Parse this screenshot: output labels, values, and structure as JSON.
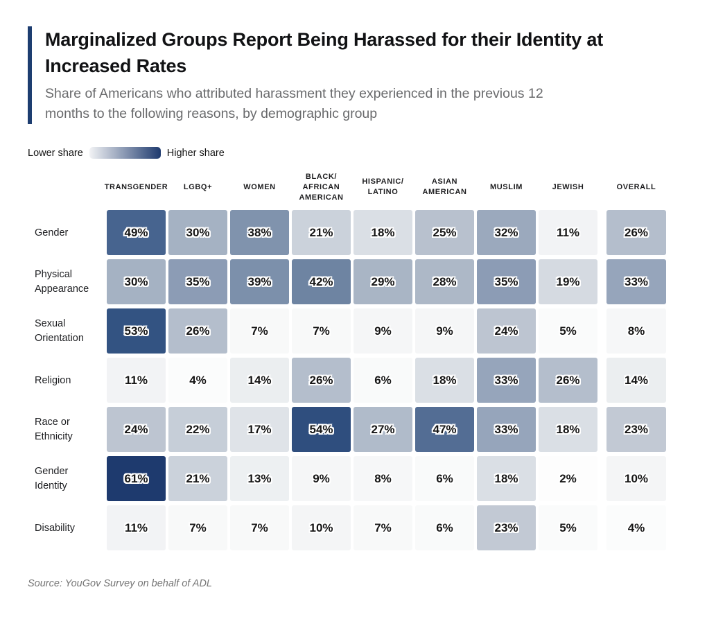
{
  "header": {
    "title": "Marginalized Groups Report Being Harassed for their Identity at\nIncreased Rates",
    "subtitle": "Share of Americans who attributed harassment they experienced in the previous 12\nmonths to the following reasons, by demographic group"
  },
  "legend": {
    "low_label": "Lower share",
    "high_label": "Higher share",
    "low_color": "#f2f3f5",
    "high_color": "#1e3a6e"
  },
  "source": "Source: YouGov Survey on behalf of ADL",
  "colors": {
    "accent_bar": "#1d3d70",
    "cell_text": "#161616",
    "scale_low": "#ffffff",
    "scale_high": "#1e3a6e"
  },
  "chart_data": {
    "type": "heatmap",
    "unit": "%",
    "title": "Marginalized Groups Report Being Harassed for their Identity at Increased Rates",
    "subtitle": "Share of Americans who attributed harassment they experienced in the previous 12 months to the following reasons, by demographic group",
    "legend_position": "top-left",
    "columns": [
      "TRANSGENDER",
      "LGBQ+",
      "WOMEN",
      "BLACK/\nAFRICAN\nAMERICAN",
      "HISPANIC/\nLATINO",
      "ASIAN\nAMERICAN",
      "MUSLIM",
      "JEWISH",
      "OVERALL"
    ],
    "rows": [
      {
        "label": "Gender",
        "values": [
          49,
          30,
          38,
          21,
          18,
          25,
          32,
          11,
          26
        ]
      },
      {
        "label": "Physical\nAppearance",
        "values": [
          30,
          35,
          39,
          42,
          29,
          28,
          35,
          19,
          33
        ]
      },
      {
        "label": "Sexual\nOrientation",
        "values": [
          53,
          26,
          7,
          7,
          9,
          9,
          24,
          5,
          8
        ]
      },
      {
        "label": "Religion",
        "values": [
          11,
          4,
          14,
          26,
          6,
          18,
          33,
          26,
          14
        ]
      },
      {
        "label": "Race or\nEthnicity",
        "values": [
          24,
          22,
          17,
          54,
          27,
          47,
          33,
          18,
          23
        ]
      },
      {
        "label": "Gender\nIdentity",
        "values": [
          61,
          21,
          13,
          9,
          8,
          6,
          18,
          2,
          10
        ]
      },
      {
        "label": "Disability",
        "values": [
          11,
          7,
          7,
          10,
          7,
          6,
          23,
          5,
          4
        ]
      }
    ],
    "value_range": [
      0,
      61
    ],
    "color_scale_stops": [
      [
        0,
        "#ffffff"
      ],
      [
        5,
        "#fafbfb"
      ],
      [
        10,
        "#f4f5f6"
      ],
      [
        15,
        "#e9ecef"
      ],
      [
        20,
        "#d0d6de"
      ],
      [
        25,
        "#b8c1ce"
      ],
      [
        30,
        "#a5b2c3"
      ],
      [
        35,
        "#8c9cb5"
      ],
      [
        40,
        "#788da8"
      ],
      [
        45,
        "#5f7699"
      ],
      [
        50,
        "#41608c"
      ],
      [
        55,
        "#2a4a7b"
      ],
      [
        61,
        "#1e3a6e"
      ]
    ]
  }
}
